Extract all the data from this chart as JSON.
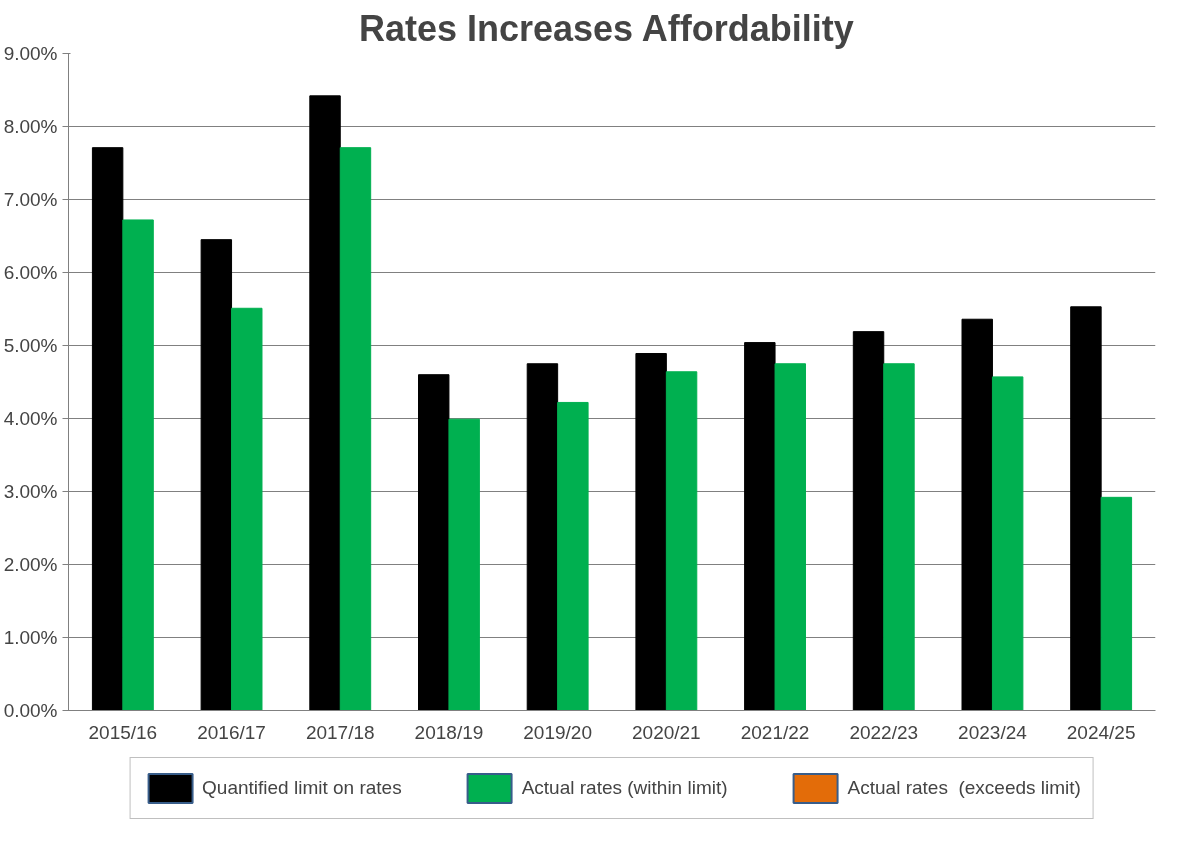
{
  "chart_data": {
    "type": "bar",
    "title": "Rates Increases  Affordability",
    "categories": [
      "2015/16",
      "2016/17",
      "2017/18",
      "2018/19",
      "2019/20",
      "2020/21",
      "2021/22",
      "2022/23",
      "2023/24",
      "2024/25"
    ],
    "series": [
      {
        "name": "Quantified limit on rates",
        "color": "#000000",
        "values": [
          7.71,
          6.45,
          8.42,
          4.6,
          4.75,
          4.89,
          5.04,
          5.19,
          5.36,
          5.53
        ]
      },
      {
        "name": "Actual rates (within limit)",
        "color": "#00b050",
        "values": [
          6.72,
          5.51,
          7.71,
          3.99,
          4.22,
          4.64,
          4.75,
          4.75,
          4.57,
          2.92
        ]
      },
      {
        "name": "Actual rates  (exceeds limit)",
        "color": "#e36c09",
        "values": [
          null,
          null,
          null,
          null,
          null,
          null,
          null,
          null,
          null,
          null
        ]
      }
    ],
    "ylim": [
      0,
      9
    ],
    "yticks": [
      {
        "value": 0,
        "label": "0.00%"
      },
      {
        "value": 1,
        "label": "1.00%"
      },
      {
        "value": 2,
        "label": "2.00%"
      },
      {
        "value": 3,
        "label": "3.00%"
      },
      {
        "value": 4,
        "label": "4.00%"
      },
      {
        "value": 5,
        "label": "5.00%"
      },
      {
        "value": 6,
        "label": "6.00%"
      },
      {
        "value": 7,
        "label": "7.00%"
      },
      {
        "value": 8,
        "label": "8.00%"
      },
      {
        "value": 9,
        "label": "9.00%"
      }
    ],
    "grid": "y",
    "legend": "bottom"
  }
}
